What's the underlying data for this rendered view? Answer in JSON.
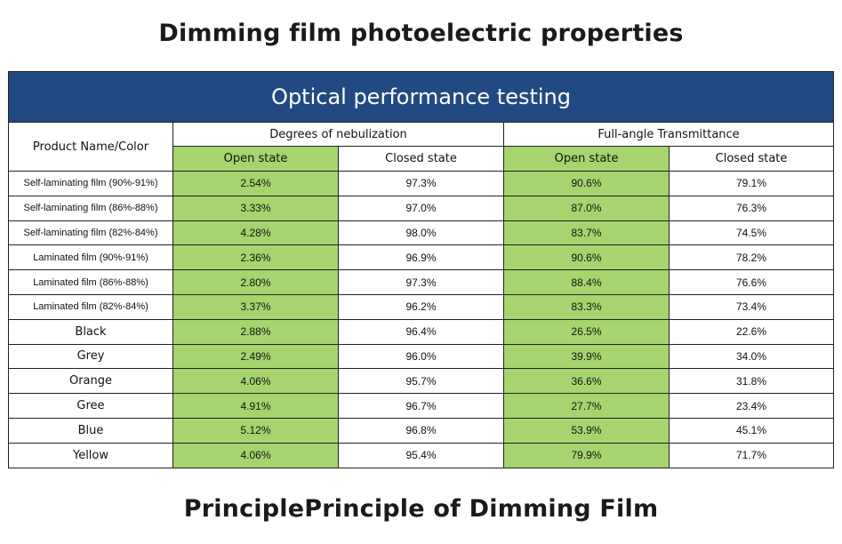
{
  "title": "Dimming film photoelectric properties",
  "footer": "PrinciplePrinciple of Dimming Film",
  "table": {
    "banner": "Optical performance testing",
    "name_header": "Product Name/Color",
    "groups": [
      "Degrees of nebulization",
      "Full-angle Transmittance"
    ],
    "states": [
      "Open state",
      "Closed state",
      "Open state",
      "Closed state"
    ],
    "rows": [
      {
        "name": "Self-laminating film (90%-91%)",
        "values": [
          "2.54%",
          "97.3%",
          "90.6%",
          "79.1%"
        ]
      },
      {
        "name": "Self-laminating film (86%-88%)",
        "values": [
          "3.33%",
          "97.0%",
          "87.0%",
          "76.3%"
        ]
      },
      {
        "name": "Self-laminating film (82%-84%)",
        "values": [
          "4.28%",
          "98.0%",
          "83.7%",
          "74.5%"
        ]
      },
      {
        "name": "Laminated film (90%-91%)",
        "values": [
          "2.36%",
          "96.9%",
          "90.6%",
          "78.2%"
        ]
      },
      {
        "name": "Laminated film (86%-88%)",
        "values": [
          "2.80%",
          "97.3%",
          "88.4%",
          "76.6%"
        ]
      },
      {
        "name": "Laminated film (82%-84%)",
        "values": [
          "3.37%",
          "96.2%",
          "83.3%",
          "73.4%"
        ]
      },
      {
        "name": "Black",
        "values": [
          "2.88%",
          "96.4%",
          "26.5%",
          "22.6%"
        ]
      },
      {
        "name": "Grey",
        "values": [
          "2.49%",
          "96.0%",
          "39.9%",
          "34.0%"
        ]
      },
      {
        "name": "Orange",
        "values": [
          "4.06%",
          "95.7%",
          "36.6%",
          "31.8%"
        ]
      },
      {
        "name": "Gree",
        "values": [
          "4.91%",
          "96.7%",
          "27.7%",
          "23.4%"
        ]
      },
      {
        "name": "Blue",
        "values": [
          "5.12%",
          "96.8%",
          "53.9%",
          "45.1%"
        ]
      },
      {
        "name": "Yellow",
        "values": [
          "4.06%",
          "95.4%",
          "79.9%",
          "71.7%"
        ]
      }
    ]
  },
  "colors": {
    "banner": "#224a82",
    "open_state": "#a6d46f"
  }
}
